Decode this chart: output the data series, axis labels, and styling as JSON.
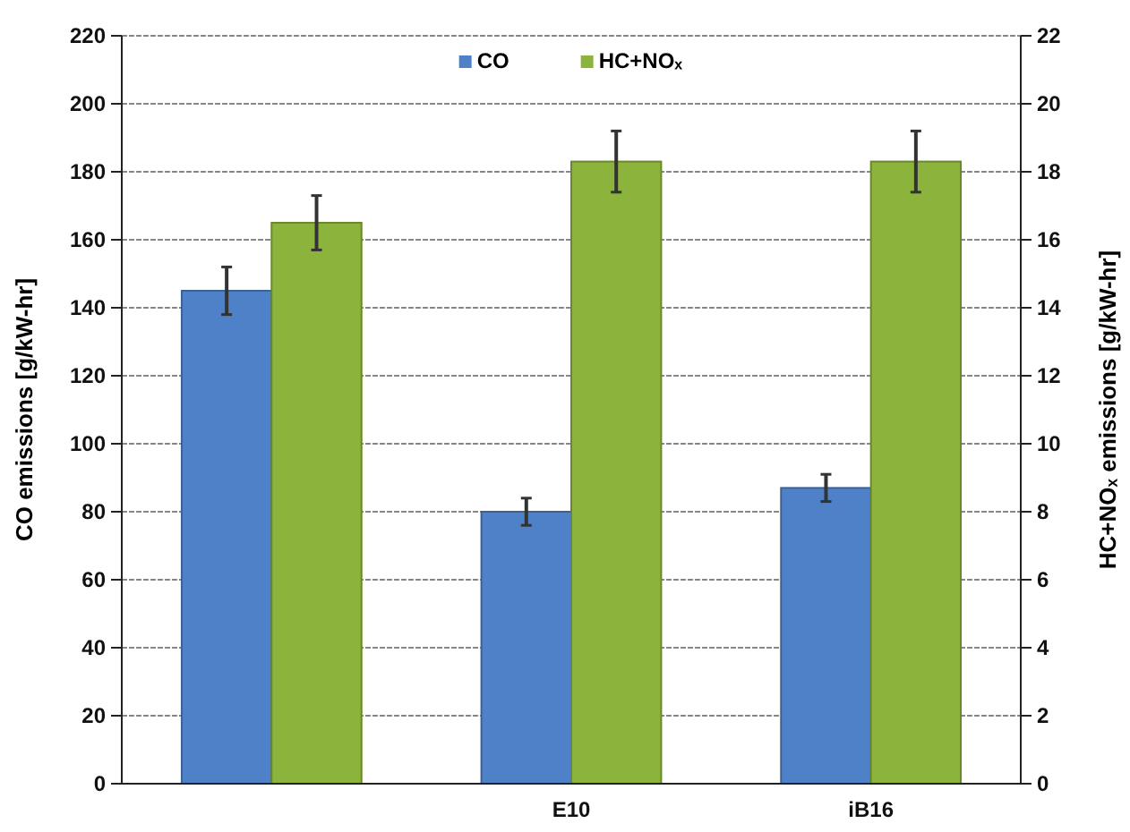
{
  "chart_data": {
    "type": "bar",
    "categories": [
      null,
      "E10",
      "iB16"
    ],
    "series": [
      {
        "name": "CO",
        "color": "#4f81c9",
        "values": [
          145,
          80,
          87
        ],
        "errors": [
          7,
          4,
          4
        ]
      },
      {
        "name": "HC+NOₓ",
        "color": "#8cb43c",
        "values": [
          16.5,
          18.3,
          18.3
        ],
        "errors": [
          0.8,
          0.9,
          0.9
        ],
        "axis": "y2"
      }
    ],
    "ylabel": "CO emissions [g/kW-hr]",
    "y2label": "HC+NOₓ emissions [g/kW-hr]",
    "ylim": [
      0,
      220
    ],
    "yticks": [
      0,
      20,
      40,
      60,
      80,
      100,
      120,
      140,
      160,
      180,
      200,
      220
    ],
    "y2lim": [
      0,
      22
    ],
    "y2ticks": [
      0,
      2,
      4,
      6,
      8,
      10,
      12,
      14,
      16,
      18,
      20,
      22
    ],
    "grid": "y",
    "legend": "top"
  }
}
